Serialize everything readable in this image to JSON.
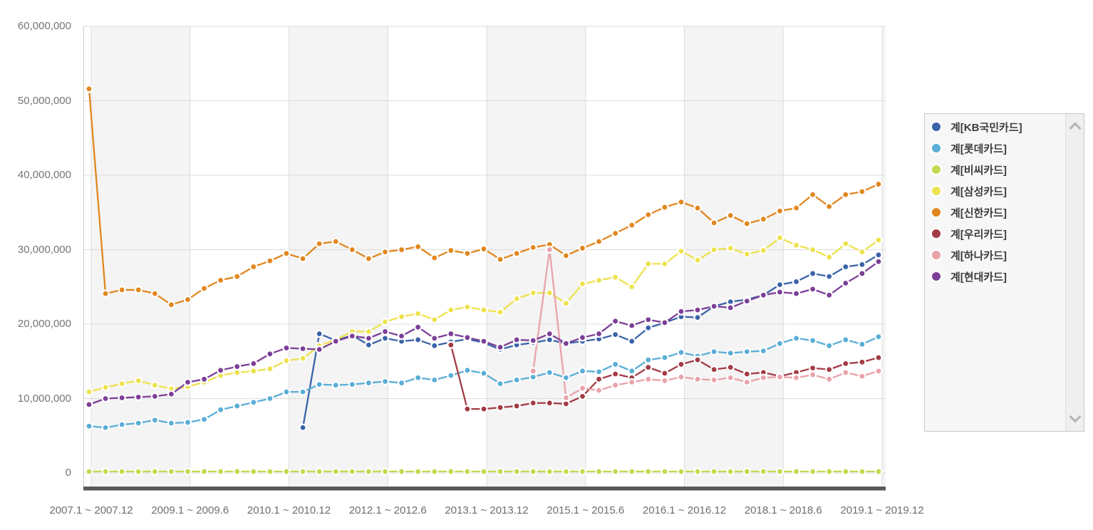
{
  "chart_data": {
    "type": "line",
    "title": "",
    "value_unit_multiplier": 1000000,
    "unit_note": "values are millions; multiply by 1,000,000 to get axis units",
    "ylim": [
      0,
      60000000
    ],
    "grid": "horizontal + vertical gridlines with alternating vertical band shading",
    "legend_position": "right",
    "y_ticks": [
      {
        "label": "60,000,000",
        "millions": 60
      },
      {
        "label": "50,000,000",
        "millions": 50
      },
      {
        "label": "40,000,000",
        "millions": 40
      },
      {
        "label": "30,000,000",
        "millions": 30
      },
      {
        "label": "20,000,000",
        "millions": 20
      },
      {
        "label": "10,000,000",
        "millions": 10
      },
      {
        "label": "0",
        "millions": 0
      }
    ],
    "x_tick_labels": [
      "2007.1 ~ 2007.12",
      "2009.1 ~ 2009.6",
      "2010.1 ~ 2010.12",
      "2012.1 ~ 2012.6",
      "2013.1 ~ 2013.12",
      "2015.1 ~ 2015.6",
      "2016.1 ~ 2016.12",
      "2018.1 ~ 2018.6",
      "2019.1 ~ 2019.12"
    ],
    "points_per_full_series": 49,
    "series": [
      {
        "name": "계[KB국민카드]",
        "key": "kb-kookmin-card",
        "color": "#3b63a8",
        "start_index": 13,
        "values_millions": [
          6.1,
          18.7,
          17.8,
          18.5,
          17.2,
          18.1,
          17.7,
          17.9,
          17.1,
          17.6,
          18.0,
          17.5,
          16.6,
          17.2,
          17.5,
          17.9,
          17.4,
          17.7,
          18.0,
          18.6,
          17.7,
          19.5,
          20.2,
          21.0,
          20.9,
          22.4,
          23.0,
          23.3,
          23.9,
          25.3,
          25.7,
          26.8,
          26.4,
          27.7,
          28.0,
          29.3
        ]
      },
      {
        "name": "계[롯데카드]",
        "key": "lotte-card",
        "color": "#5aaed6",
        "start_index": 0,
        "values_millions": [
          6.3,
          6.1,
          6.5,
          6.7,
          7.1,
          6.7,
          6.8,
          7.2,
          8.5,
          9.0,
          9.5,
          10.0,
          10.9,
          10.9,
          11.9,
          11.8,
          11.9,
          12.1,
          12.3,
          12.1,
          12.8,
          12.5,
          13.1,
          13.8,
          13.4,
          12.0,
          12.5,
          12.9,
          13.5,
          12.8,
          13.7,
          13.6,
          14.6,
          13.7,
          15.2,
          15.5,
          16.2,
          15.7,
          16.3,
          16.1,
          16.3,
          16.4,
          17.4,
          18.1,
          17.8,
          17.1,
          17.9,
          17.3,
          18.3
        ]
      },
      {
        "name": "계[비씨카드]",
        "key": "bc-card",
        "color": "#c3da50",
        "start_index": 0,
        "values_millions": [
          0.2,
          0.2,
          0.2,
          0.2,
          0.2,
          0.2,
          0.2,
          0.2,
          0.2,
          0.2,
          0.2,
          0.2,
          0.2,
          0.2,
          0.2,
          0.2,
          0.2,
          0.2,
          0.2,
          0.2,
          0.2,
          0.2,
          0.2,
          0.2,
          0.2,
          0.2,
          0.2,
          0.2,
          0.2,
          0.2,
          0.2,
          0.2,
          0.2,
          0.2,
          0.2,
          0.2,
          0.2,
          0.2,
          0.2,
          0.2,
          0.2,
          0.2,
          0.2,
          0.2,
          0.2,
          0.2,
          0.2,
          0.2,
          0.2
        ]
      },
      {
        "name": "계[삼성카드]",
        "key": "samsung-card",
        "color": "#eee24f",
        "start_index": 0,
        "values_millions": [
          10.9,
          11.5,
          12.0,
          12.4,
          11.8,
          11.3,
          11.6,
          12.2,
          13.1,
          13.5,
          13.7,
          14.0,
          15.1,
          15.4,
          17.1,
          17.9,
          19.0,
          19.0,
          20.3,
          21.0,
          21.4,
          20.6,
          21.9,
          22.3,
          21.9,
          21.6,
          23.4,
          24.2,
          24.2,
          22.8,
          25.4,
          25.9,
          26.3,
          25.0,
          28.1,
          28.1,
          29.8,
          28.6,
          30.0,
          30.2,
          29.4,
          29.9,
          31.6,
          30.6,
          30.0,
          29.0,
          30.8,
          29.7,
          31.3
        ]
      },
      {
        "name": "계[신한카드]",
        "key": "shinhan-card",
        "color": "#e1871f",
        "start_index": 0,
        "values_millions": [
          51.6,
          24.1,
          24.6,
          24.6,
          24.1,
          22.6,
          23.3,
          24.8,
          25.9,
          26.4,
          27.7,
          28.5,
          29.5,
          28.8,
          30.8,
          31.1,
          30.0,
          28.8,
          29.7,
          30.0,
          30.4,
          28.9,
          29.9,
          29.5,
          30.1,
          28.7,
          29.5,
          30.3,
          30.7,
          29.2,
          30.2,
          31.1,
          32.2,
          33.3,
          34.7,
          35.7,
          36.4,
          35.6,
          33.6,
          34.6,
          33.5,
          34.1,
          35.2,
          35.6,
          37.4,
          35.8,
          37.4,
          37.8,
          38.8
        ]
      },
      {
        "name": "계[우리카드]",
        "key": "woori-card",
        "color": "#a23b45",
        "start_index": 22,
        "values_millions": [
          17.2,
          8.6,
          8.6,
          8.8,
          9.0,
          9.4,
          9.4,
          9.3,
          10.3,
          12.6,
          13.3,
          12.8,
          14.2,
          13.4,
          14.6,
          15.2,
          13.9,
          14.2,
          13.3,
          13.5,
          13.0,
          13.5,
          14.1,
          13.9,
          14.7,
          14.9,
          15.5
        ]
      },
      {
        "name": "계[하나카드]",
        "key": "hana-card",
        "color": "#e9a3ab",
        "start_index": 27,
        "values_millions": [
          13.7,
          30.0,
          10.1,
          11.4,
          11.1,
          11.8,
          12.2,
          12.6,
          12.4,
          12.9,
          12.6,
          12.5,
          12.8,
          12.2,
          12.8,
          12.9,
          12.8,
          13.2,
          12.6,
          13.5,
          13.0,
          13.7
        ]
      },
      {
        "name": "계[현대카드]",
        "key": "hyundai-card",
        "color": "#7c3f97",
        "start_index": 0,
        "values_millions": [
          9.2,
          10.0,
          10.1,
          10.2,
          10.3,
          10.6,
          12.2,
          12.6,
          13.8,
          14.3,
          14.7,
          16.0,
          16.8,
          16.7,
          16.6,
          17.7,
          18.4,
          18.1,
          19.0,
          18.4,
          19.6,
          18.1,
          18.7,
          18.2,
          17.7,
          16.9,
          17.9,
          17.8,
          18.7,
          17.4,
          18.2,
          18.7,
          20.4,
          19.8,
          20.6,
          20.2,
          21.7,
          21.9,
          22.4,
          22.2,
          23.1,
          23.9,
          24.3,
          24.1,
          24.7,
          23.9,
          25.5,
          26.8,
          28.4
        ]
      }
    ],
    "style": {
      "band_fill": "#f4f4f4",
      "gridline_color": "#dcdcdc",
      "axis_line_color": "#c9c9c9",
      "axis_bar_color": "#58585a",
      "tick_text_color": "#6e6e6e",
      "point_ring_color": "#ffffff"
    }
  },
  "legend": {
    "scroll_up_icon": "chevron-up",
    "scroll_down_icon": "chevron-down"
  }
}
